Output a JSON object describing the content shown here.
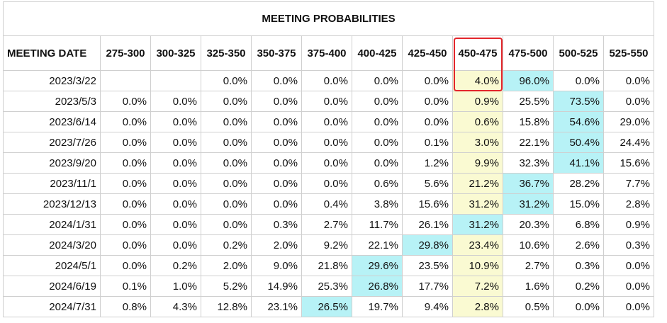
{
  "title": "MEETING PROBABILITIES",
  "columns": [
    "MEETING DATE",
    "275-300",
    "300-325",
    "325-350",
    "350-375",
    "375-400",
    "400-425",
    "425-450",
    "450-475",
    "475-500",
    "500-525",
    "525-550"
  ],
  "highlighted_column": "450-475",
  "colors": {
    "current_range": "#fafad2",
    "max_probability": "#b7f2f6",
    "highlight_border": "#e3262b"
  },
  "rows": [
    {
      "date": "2023/3/22",
      "values": [
        "",
        "",
        "0.0%",
        "0.0%",
        "0.0%",
        "0.0%",
        "0.0%",
        "4.0%",
        "96.0%",
        "0.0%",
        "0.0%"
      ],
      "max_index": 8
    },
    {
      "date": "2023/5/3",
      "values": [
        "0.0%",
        "0.0%",
        "0.0%",
        "0.0%",
        "0.0%",
        "0.0%",
        "0.0%",
        "0.9%",
        "25.5%",
        "73.5%",
        "0.0%"
      ],
      "max_index": 9
    },
    {
      "date": "2023/6/14",
      "values": [
        "0.0%",
        "0.0%",
        "0.0%",
        "0.0%",
        "0.0%",
        "0.0%",
        "0.0%",
        "0.6%",
        "15.8%",
        "54.6%",
        "29.0%"
      ],
      "max_index": 9
    },
    {
      "date": "2023/7/26",
      "values": [
        "0.0%",
        "0.0%",
        "0.0%",
        "0.0%",
        "0.0%",
        "0.0%",
        "0.1%",
        "3.0%",
        "22.1%",
        "50.4%",
        "24.4%"
      ],
      "max_index": 9
    },
    {
      "date": "2023/9/20",
      "values": [
        "0.0%",
        "0.0%",
        "0.0%",
        "0.0%",
        "0.0%",
        "0.0%",
        "1.2%",
        "9.9%",
        "32.3%",
        "41.1%",
        "15.6%"
      ],
      "max_index": 9
    },
    {
      "date": "2023/11/1",
      "values": [
        "0.0%",
        "0.0%",
        "0.0%",
        "0.0%",
        "0.0%",
        "0.6%",
        "5.6%",
        "21.2%",
        "36.7%",
        "28.2%",
        "7.7%"
      ],
      "max_index": 8
    },
    {
      "date": "2023/12/13",
      "values": [
        "0.0%",
        "0.0%",
        "0.0%",
        "0.0%",
        "0.4%",
        "3.8%",
        "15.6%",
        "31.2%",
        "31.2%",
        "15.0%",
        "2.8%"
      ],
      "max_index": 8
    },
    {
      "date": "2024/1/31",
      "values": [
        "0.0%",
        "0.0%",
        "0.0%",
        "0.3%",
        "2.7%",
        "11.7%",
        "26.1%",
        "31.2%",
        "20.3%",
        "6.8%",
        "0.9%"
      ],
      "max_index": 7
    },
    {
      "date": "2024/3/20",
      "values": [
        "0.0%",
        "0.0%",
        "0.2%",
        "2.0%",
        "9.2%",
        "22.1%",
        "29.8%",
        "23.4%",
        "10.6%",
        "2.6%",
        "0.3%"
      ],
      "max_index": 6
    },
    {
      "date": "2024/5/1",
      "values": [
        "0.0%",
        "0.2%",
        "2.0%",
        "9.0%",
        "21.8%",
        "29.6%",
        "23.5%",
        "10.9%",
        "2.7%",
        "0.3%",
        "0.0%"
      ],
      "max_index": 5
    },
    {
      "date": "2024/6/19",
      "values": [
        "0.1%",
        "1.0%",
        "5.2%",
        "14.9%",
        "25.3%",
        "26.8%",
        "17.7%",
        "7.2%",
        "1.6%",
        "0.2%",
        "0.0%"
      ],
      "max_index": 5
    },
    {
      "date": "2024/7/31",
      "values": [
        "0.8%",
        "4.3%",
        "12.8%",
        "23.1%",
        "26.5%",
        "19.7%",
        "9.4%",
        "2.8%",
        "0.5%",
        "0.0%",
        "0.0%"
      ],
      "max_index": 4
    }
  ]
}
